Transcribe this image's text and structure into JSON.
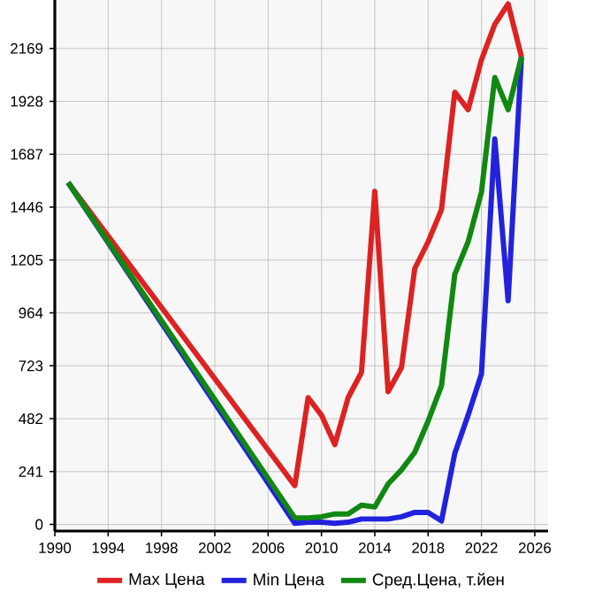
{
  "chart_data": {
    "type": "line",
    "x": [
      1991,
      2008,
      2009,
      2010,
      2011,
      2012,
      2013,
      2014,
      2015,
      2016,
      2017,
      2018,
      2019,
      2020,
      2021,
      2022,
      2023,
      2024,
      2025
    ],
    "series": [
      {
        "name": "Max Цена",
        "color": "#dd2222",
        "values": [
          1558,
          177,
          578,
          498,
          364,
          578,
          693,
          1518,
          605,
          715,
          1167,
          1288,
          1435,
          1970,
          1890,
          2118,
          2279,
          2372,
          2131
        ]
      },
      {
        "name": "Min Цена",
        "color": "#2222dd",
        "values": [
          1558,
          5,
          10,
          10,
          5,
          10,
          25,
          25,
          25,
          35,
          55,
          55,
          16,
          324,
          498,
          686,
          1757,
          1020,
          2131
        ]
      },
      {
        "name": "Сред.Цена, т.йен",
        "color": "#118811",
        "values": [
          1558,
          30,
          30,
          35,
          48,
          48,
          88,
          80,
          185,
          249,
          329,
          471,
          632,
          1140,
          1288,
          1515,
          2037,
          1890,
          2131
        ]
      }
    ],
    "xlim": [
      1990,
      2027
    ],
    "ylim": [
      -30,
      2390
    ],
    "xticks": [
      1990,
      1994,
      1998,
      2002,
      2006,
      2010,
      2014,
      2018,
      2022,
      2026
    ],
    "yticks": [
      0,
      241,
      482,
      723,
      964,
      1205,
      1446,
      1687,
      1928,
      2169
    ],
    "grid": true,
    "legend": "bottom",
    "marker": "none",
    "line_style": "solid"
  }
}
